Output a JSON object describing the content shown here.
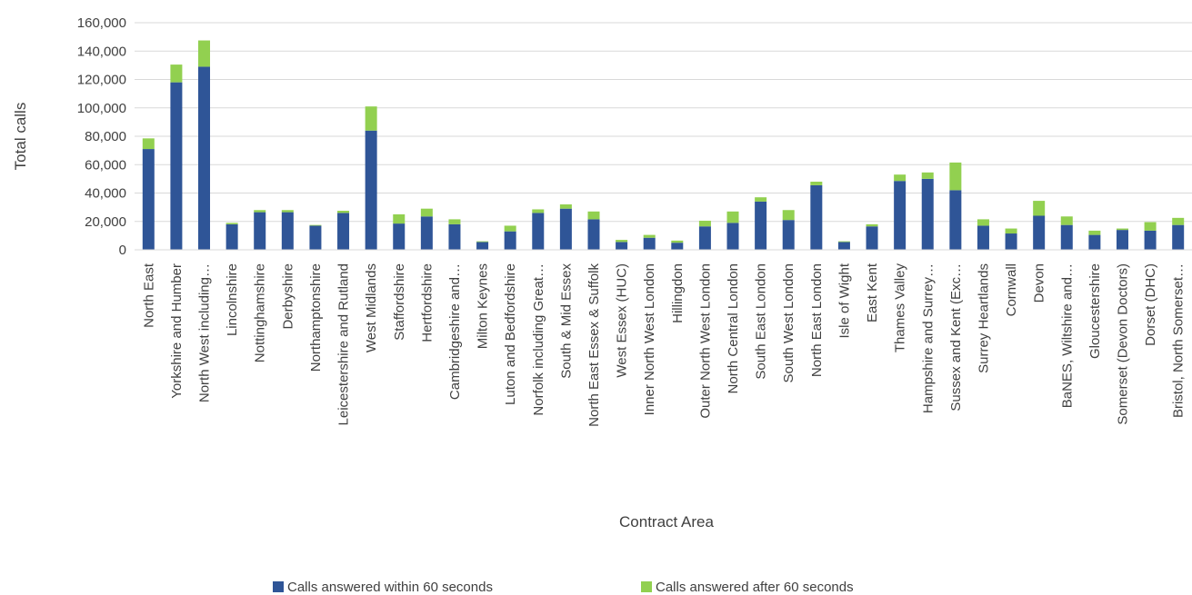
{
  "chart_data": {
    "type": "bar",
    "stacked": true,
    "title": "",
    "xlabel": "Contract Area",
    "ylabel": "Total calls",
    "ylim": [
      0,
      160000
    ],
    "yticks": [
      0,
      20000,
      40000,
      60000,
      80000,
      100000,
      120000,
      140000,
      160000
    ],
    "ytick_labels": [
      "0",
      "20,000",
      "40,000",
      "60,000",
      "80,000",
      "100,000",
      "120,000",
      "140,000",
      "160,000"
    ],
    "grid": true,
    "legend_position": "bottom",
    "categories": [
      "North East",
      "Yorkshire and Humber",
      "North West including…",
      "Lincolnshire",
      "Nottinghamshire",
      "Derbyshire",
      "Northamptonshire",
      "Leicestershire and Rutland",
      "West Midlands",
      "Staffordshire",
      "Hertfordshire",
      "Cambridgeshire and…",
      "Milton Keynes",
      "Luton and Bedfordshire",
      "Norfolk including Great…",
      "South & Mid Essex",
      "North East Essex & Suffolk",
      "West Essex (HUC)",
      "Inner North West London",
      "Hillingdon",
      "Outer North West London",
      "North Central London",
      "South East London",
      "South West London",
      "North East London",
      "Isle of Wight",
      "East Kent",
      "Thames Valley",
      "Hampshire and Surrey…",
      "Sussex and Kent (Exc…",
      "Surrey Heartlands",
      "Cornwall",
      "Devon",
      "BaNES, Wiltshire and…",
      "Gloucestershire",
      "Somerset (Devon Doctors)",
      "Dorset (DHC)",
      "Bristol, North Somerset…"
    ],
    "series": [
      {
        "name": "Calls answered within 60 seconds",
        "color": "#2f5597",
        "values": [
          71000,
          118000,
          129000,
          18000,
          26500,
          26500,
          17000,
          26000,
          84000,
          18500,
          23500,
          18000,
          5500,
          13000,
          26000,
          29000,
          21500,
          5500,
          8500,
          5000,
          16500,
          19000,
          34000,
          21000,
          45500,
          5500,
          16500,
          48500,
          50000,
          42000,
          17000,
          11500,
          24000,
          17500,
          10500,
          14000,
          13500,
          17500
        ]
      },
      {
        "name": "Calls answered after 60 seconds",
        "color": "#92d050",
        "values": [
          7500,
          12500,
          18500,
          1000,
          1500,
          1500,
          500,
          1500,
          17000,
          6500,
          5500,
          3500,
          500,
          4000,
          2500,
          3000,
          5500,
          1500,
          2000,
          1500,
          4000,
          8000,
          3000,
          7000,
          2500,
          500,
          1500,
          4500,
          4500,
          19500,
          4500,
          3500,
          10500,
          6000,
          3000,
          1000,
          6000,
          5000
        ]
      }
    ]
  }
}
